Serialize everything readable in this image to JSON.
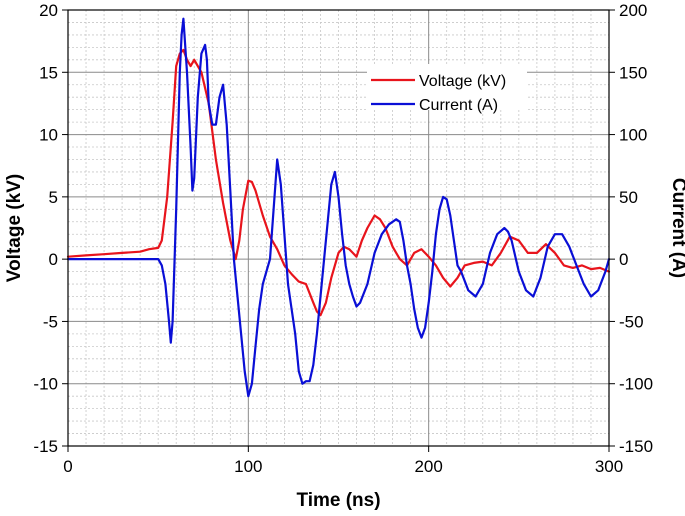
{
  "chart_data": {
    "type": "line",
    "title": "",
    "xlabel": "Time (ns)",
    "ylabel": "Voltage (kV)",
    "y2label": "Current (A)",
    "xlim": [
      0,
      300
    ],
    "ylim": [
      -15,
      20
    ],
    "y2lim": [
      -150,
      200
    ],
    "x_ticks": [
      0,
      100,
      200,
      300
    ],
    "y_ticks": [
      -15,
      -10,
      -5,
      0,
      5,
      10,
      15,
      20
    ],
    "y2_ticks": [
      -150,
      -100,
      -50,
      0,
      50,
      100,
      150,
      200
    ],
    "grid": true,
    "legend_position": "top-right",
    "series": [
      {
        "name": "Voltage (kV)",
        "axis": "left",
        "color": "#e8141c",
        "x": [
          0,
          10,
          20,
          30,
          40,
          45,
          50,
          52,
          55,
          58,
          60,
          62,
          64,
          66,
          68,
          70,
          72,
          74,
          78,
          82,
          86,
          90,
          93,
          95,
          97,
          100,
          102,
          104,
          108,
          112,
          116,
          120,
          124,
          128,
          132,
          136,
          138,
          140,
          143,
          146,
          150,
          153,
          156,
          160,
          163,
          166,
          170,
          173,
          176,
          180,
          184,
          188,
          192,
          196,
          200,
          204,
          208,
          212,
          216,
          220,
          225,
          230,
          235,
          240,
          245,
          250,
          255,
          260,
          265,
          270,
          275,
          280,
          285,
          290,
          295,
          300
        ],
        "y": [
          0.2,
          0.3,
          0.4,
          0.5,
          0.6,
          0.8,
          0.9,
          1.5,
          5.0,
          11.0,
          15.5,
          16.5,
          16.8,
          16.0,
          15.5,
          16.0,
          15.5,
          15.0,
          12.5,
          8.0,
          4.5,
          1.5,
          0.0,
          1.5,
          4.0,
          6.3,
          6.2,
          5.5,
          3.5,
          1.8,
          0.8,
          -0.5,
          -1.2,
          -1.8,
          -2.0,
          -3.5,
          -4.2,
          -4.5,
          -3.5,
          -1.5,
          0.5,
          1.0,
          0.8,
          0.2,
          1.5,
          2.5,
          3.5,
          3.2,
          2.5,
          1.0,
          0.0,
          -0.5,
          0.5,
          0.8,
          0.2,
          -0.5,
          -1.5,
          -2.2,
          -1.5,
          -0.5,
          -0.3,
          -0.2,
          -0.5,
          0.5,
          1.8,
          1.5,
          0.5,
          0.5,
          1.2,
          0.5,
          -0.5,
          -0.7,
          -0.5,
          -0.8,
          -0.7,
          -1.0
        ]
      },
      {
        "name": "Current (A)",
        "axis": "right",
        "color": "#0a0fd6",
        "x": [
          0,
          10,
          20,
          30,
          40,
          45,
          50,
          52,
          54,
          56,
          57,
          58,
          60,
          62,
          63,
          64,
          66,
          68,
          69,
          70,
          72,
          74,
          76,
          77,
          78,
          80,
          82,
          84,
          86,
          88,
          90,
          92,
          94,
          96,
          98,
          100,
          102,
          104,
          106,
          108,
          110,
          112,
          114,
          116,
          118,
          120,
          122,
          124,
          126,
          128,
          130,
          132,
          134,
          136,
          138,
          140,
          142,
          144,
          146,
          148,
          150,
          152,
          154,
          156,
          158,
          160,
          162,
          166,
          170,
          174,
          178,
          182,
          184,
          186,
          188,
          190,
          192,
          194,
          196,
          198,
          200,
          202,
          204,
          206,
          208,
          210,
          212,
          214,
          216,
          218,
          222,
          226,
          230,
          234,
          238,
          242,
          244,
          246,
          250,
          254,
          258,
          262,
          266,
          270,
          274,
          278,
          282,
          286,
          290,
          294,
          298,
          300
        ],
        "y": [
          0,
          0,
          0,
          0,
          0,
          0,
          0,
          -5,
          -20,
          -50,
          -67,
          -50,
          40,
          150,
          180,
          193,
          150,
          90,
          55,
          65,
          130,
          165,
          172,
          160,
          125,
          108,
          108,
          130,
          140,
          108,
          55,
          0,
          -30,
          -60,
          -90,
          -110,
          -100,
          -70,
          -40,
          -20,
          -10,
          0,
          40,
          80,
          60,
          20,
          -20,
          -40,
          -60,
          -90,
          -100,
          -98,
          -98,
          -85,
          -60,
          -30,
          0,
          30,
          60,
          70,
          50,
          20,
          -5,
          -20,
          -30,
          -38,
          -35,
          -20,
          5,
          20,
          28,
          32,
          30,
          15,
          -5,
          -20,
          -40,
          -55,
          -63,
          -55,
          -35,
          -10,
          20,
          40,
          50,
          48,
          35,
          15,
          -5,
          -10,
          -25,
          -30,
          -20,
          5,
          20,
          25,
          22,
          15,
          -10,
          -25,
          -30,
          -15,
          10,
          20,
          20,
          10,
          -5,
          -20,
          -30,
          -25,
          -10,
          0
        ]
      }
    ]
  }
}
